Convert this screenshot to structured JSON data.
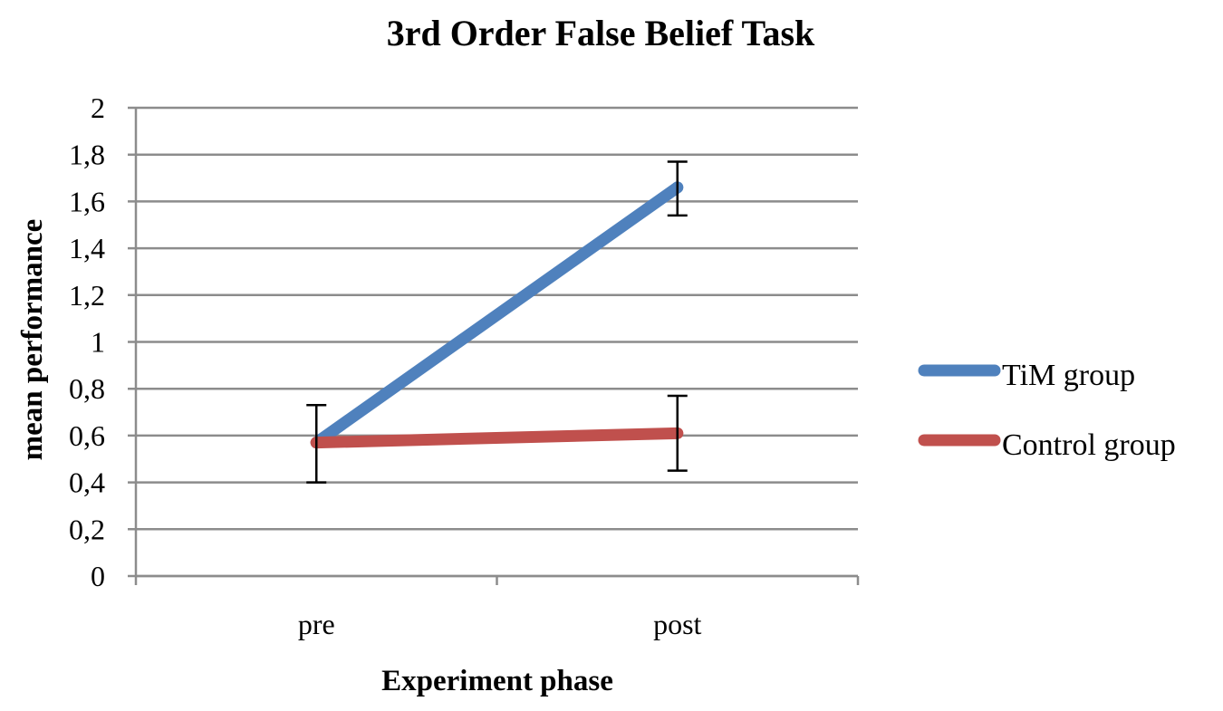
{
  "chart_data": {
    "type": "line",
    "title": "3rd Order False Belief Task",
    "xlabel": "Experiment phase",
    "ylabel": "mean performance",
    "categories": [
      "pre",
      "post"
    ],
    "ylim": [
      0,
      2
    ],
    "yticks": [
      0,
      0.2,
      0.4,
      0.6,
      0.8,
      1,
      1.2,
      1.4,
      1.6,
      1.8,
      2
    ],
    "ytick_labels": [
      "0",
      "0,2",
      "0,4",
      "0,6",
      "0,8",
      "1",
      "1,2",
      "1,4",
      "1,6",
      "1,8",
      "2"
    ],
    "grid": true,
    "legend_position": "right",
    "series": [
      {
        "name": "TiM group",
        "color": "#4f81bd",
        "values": [
          0.57,
          1.66
        ],
        "error_low": [
          0.4,
          1.54
        ],
        "error_high": [
          0.73,
          1.77
        ]
      },
      {
        "name": "Control group",
        "color": "#c0504d",
        "values": [
          0.57,
          0.61
        ],
        "error_low": [
          0.4,
          0.45
        ],
        "error_high": [
          0.73,
          0.77
        ]
      }
    ]
  }
}
